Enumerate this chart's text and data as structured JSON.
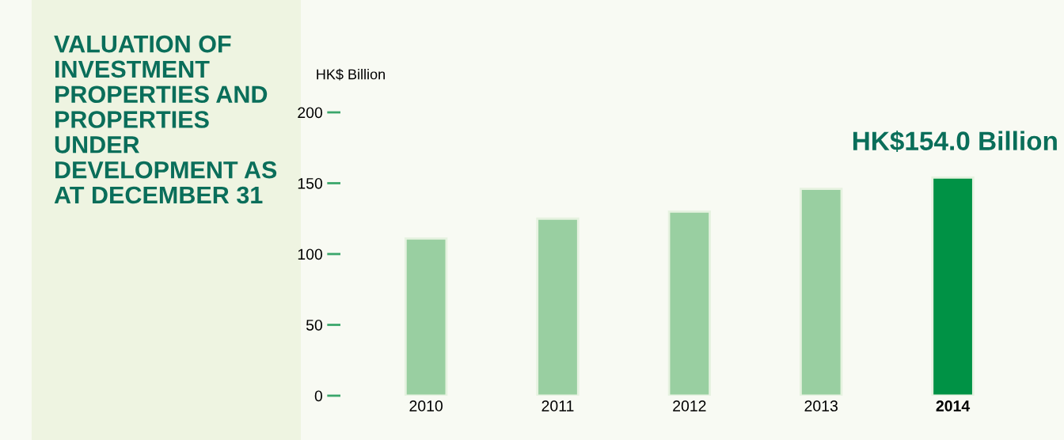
{
  "chart_data": {
    "type": "bar",
    "title": "VALUATION OF INVESTMENT PROPERTIES AND PROPERTIES UNDER DEVELOPMENT AS AT DECEMBER 31",
    "ylabel": "HK$ Billion",
    "categories": [
      "2010",
      "2011",
      "2012",
      "2013",
      "2014"
    ],
    "values": [
      111,
      125,
      130,
      146,
      154.0
    ],
    "colors": [
      "#99cfa1",
      "#99cfa1",
      "#99cfa1",
      "#99cfa1",
      "#009245"
    ],
    "ylim": [
      0,
      200
    ],
    "yticks": [
      0,
      50,
      100,
      150,
      200
    ],
    "grid": false,
    "annotations": [
      {
        "text": "HK$154.0 Billion",
        "x": "2014",
        "y": 154.0
      }
    ]
  }
}
